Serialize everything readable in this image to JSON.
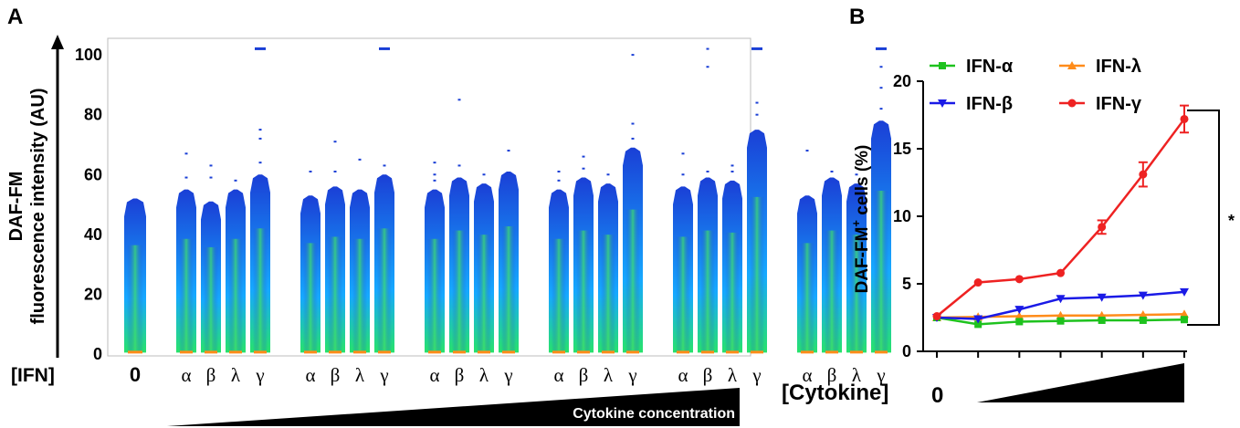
{
  "panels": {
    "a": {
      "letter": "A"
    },
    "b": {
      "letter": "B"
    }
  },
  "colors": {
    "ifn_alpha": "#1ec21e",
    "ifn_beta": "#1a1ae6",
    "ifn_lambda": "#ff8c1a",
    "ifn_gamma": "#ee2222",
    "flow_low": "#1a3fd6",
    "flow_mid": "#16a9ff",
    "flow_high": "#27e36a"
  },
  "chart_data": [
    {
      "type": "violin",
      "panel": "A",
      "ylabel": [
        "DAF-FM",
        "fluorescence intensity (AU)"
      ],
      "yticks": [
        0,
        20,
        40,
        60,
        80,
        100
      ],
      "ylim": [
        0,
        104
      ],
      "xlabel_left": "[IFN]",
      "zero_label": "0",
      "greek_labels": [
        "α",
        "β",
        "λ",
        "γ"
      ],
      "concentration_label": "Cytokine concentration",
      "groups": [
        {
          "conc": "0",
          "lanes": [
            {
              "cyt": "0",
              "top": 52
            }
          ]
        },
        {
          "conc": "c1",
          "lanes": [
            {
              "cyt": "α",
              "top": 55,
              "outliers": [
                59,
                67
              ],
              "saturated": false
            },
            {
              "cyt": "β",
              "top": 51,
              "outliers": [
                59,
                63
              ],
              "saturated": false
            },
            {
              "cyt": "λ",
              "top": 55,
              "outliers": [
                58
              ],
              "saturated": false
            },
            {
              "cyt": "γ",
              "top": 60,
              "outliers": [
                64,
                72,
                75,
                102
              ],
              "saturated": true
            }
          ]
        },
        {
          "conc": "c2",
          "lanes": [
            {
              "cyt": "α",
              "top": 53,
              "outliers": [
                61
              ],
              "saturated": false
            },
            {
              "cyt": "β",
              "top": 56,
              "outliers": [
                61,
                71
              ],
              "saturated": false
            },
            {
              "cyt": "λ",
              "top": 55,
              "outliers": [
                65
              ],
              "saturated": false
            },
            {
              "cyt": "γ",
              "top": 60,
              "outliers": [
                63,
                102
              ],
              "saturated": true
            }
          ]
        },
        {
          "conc": "c3",
          "lanes": [
            {
              "cyt": "α",
              "top": 55,
              "outliers": [
                58,
                60,
                64
              ],
              "saturated": false
            },
            {
              "cyt": "β",
              "top": 59,
              "outliers": [
                63,
                85
              ],
              "saturated": false
            },
            {
              "cyt": "λ",
              "top": 57,
              "outliers": [
                60
              ],
              "saturated": false
            },
            {
              "cyt": "γ",
              "top": 61,
              "outliers": [
                68
              ],
              "saturated": false
            }
          ]
        },
        {
          "conc": "c4",
          "lanes": [
            {
              "cyt": "α",
              "top": 55,
              "outliers": [
                58,
                61
              ],
              "saturated": false
            },
            {
              "cyt": "β",
              "top": 59,
              "outliers": [
                62,
                66
              ],
              "saturated": false
            },
            {
              "cyt": "λ",
              "top": 57,
              "outliers": [
                60
              ],
              "saturated": false
            },
            {
              "cyt": "γ",
              "top": 69,
              "outliers": [
                72,
                77,
                100
              ],
              "saturated": false
            }
          ]
        },
        {
          "conc": "c5",
          "lanes": [
            {
              "cyt": "α",
              "top": 56,
              "outliers": [
                60,
                67
              ],
              "saturated": false
            },
            {
              "cyt": "β",
              "top": 59,
              "outliers": [
                61,
                96,
                102
              ],
              "saturated": false
            },
            {
              "cyt": "λ",
              "top": 58,
              "outliers": [
                61,
                63
              ],
              "saturated": false
            },
            {
              "cyt": "γ",
              "top": 75,
              "outliers": [
                80,
                84,
                102
              ],
              "saturated": true
            }
          ]
        },
        {
          "conc": "c6",
          "lanes": [
            {
              "cyt": "α",
              "top": 53,
              "outliers": [
                68
              ],
              "saturated": false
            },
            {
              "cyt": "β",
              "top": 59,
              "outliers": [
                61
              ],
              "saturated": false
            },
            {
              "cyt": "λ",
              "top": 57,
              "outliers": [
                60
              ],
              "saturated": false
            },
            {
              "cyt": "γ",
              "top": 78,
              "outliers": [
                82,
                89,
                96,
                102
              ],
              "saturated": true
            }
          ]
        }
      ]
    },
    {
      "type": "line",
      "panel": "B",
      "ylabel_main": "DAF-FM",
      "ylabel_sup": "+",
      "ylabel_rest": " cells (%)",
      "xlabel": "[Cytokine]",
      "zero_label": "0",
      "ylim": [
        0,
        20
      ],
      "yticks": [
        0,
        5,
        10,
        15,
        20
      ],
      "x": [
        0,
        1,
        2,
        3,
        4,
        5,
        6
      ],
      "series": [
        {
          "name": "IFN-α",
          "marker": "square",
          "values": [
            2.5,
            2.0,
            2.2,
            2.25,
            2.3,
            2.3,
            2.35
          ],
          "err": [
            0.15,
            0.15,
            0.15,
            0.15,
            0.15,
            0.15,
            0.15
          ]
        },
        {
          "name": "IFN-β",
          "marker": "triangle-down",
          "values": [
            2.5,
            2.4,
            3.1,
            3.9,
            4.0,
            4.15,
            4.4
          ],
          "err": [
            0.15,
            0.15,
            0.2,
            0.2,
            0.2,
            0.2,
            0.2
          ]
        },
        {
          "name": "IFN-λ",
          "marker": "triangle-up",
          "values": [
            2.5,
            2.55,
            2.6,
            2.65,
            2.65,
            2.7,
            2.75
          ],
          "err": [
            0.1,
            0.1,
            0.1,
            0.1,
            0.1,
            0.1,
            0.1
          ]
        },
        {
          "name": "IFN-γ",
          "marker": "circle",
          "values": [
            2.6,
            5.1,
            5.35,
            5.8,
            9.2,
            13.1,
            17.2
          ],
          "err": [
            0.15,
            0.2,
            0.15,
            0.2,
            0.5,
            0.9,
            1.0
          ]
        }
      ],
      "significance": "*"
    }
  ]
}
